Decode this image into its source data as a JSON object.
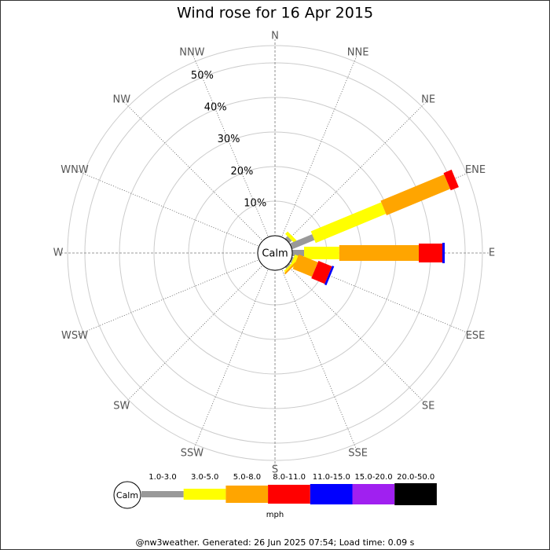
{
  "chart_data": {
    "type": "windrose",
    "title": "Wind rose for 16 Apr 2015",
    "directions": [
      "N",
      "NNE",
      "NE",
      "ENE",
      "E",
      "ESE",
      "SE",
      "SSE",
      "S",
      "SSW",
      "SW",
      "WSW",
      "W",
      "WNW",
      "NW",
      "NNW"
    ],
    "series": [
      {
        "name": "1.0-3.0",
        "color": "#999999",
        "values": [
          0,
          0,
          1.0,
          7.0,
          3.4,
          0.5,
          0.5,
          0,
          0,
          0,
          0,
          0,
          0,
          0,
          0,
          0
        ]
      },
      {
        "name": "3.0-5.0",
        "color": "#ffff00",
        "values": [
          0,
          0,
          1.0,
          22.0,
          10.2,
          1.0,
          0.5,
          0,
          0,
          0,
          0,
          0,
          0,
          0,
          0,
          0
        ]
      },
      {
        "name": "5.0-8.0",
        "color": "#ffa500",
        "values": [
          0,
          0,
          0,
          19.9,
          23.0,
          6.0,
          0.5,
          0,
          0,
          0,
          0,
          0,
          0,
          0,
          0,
          0
        ]
      },
      {
        "name": "8.0-11.0",
        "color": "#ff0000",
        "values": [
          0,
          0,
          0,
          2.5,
          6.8,
          4.2,
          0,
          0,
          0,
          0,
          0,
          0,
          0,
          0,
          0,
          0
        ]
      },
      {
        "name": "11.0-15.0",
        "color": "#0000ff",
        "values": [
          0,
          0,
          0,
          0,
          0.7,
          0.6,
          0,
          0,
          0,
          0,
          0,
          0,
          0,
          0,
          0,
          0
        ]
      },
      {
        "name": "15.0-20.0",
        "color": "#a020f0",
        "values": [
          0,
          0,
          0,
          0,
          0,
          0,
          0,
          0,
          0,
          0,
          0,
          0,
          0,
          0,
          0,
          0
        ]
      },
      {
        "name": "20.0-50.0",
        "color": "#000000",
        "values": [
          0,
          0,
          0,
          0,
          0,
          0,
          0,
          0,
          0,
          0,
          0,
          0,
          0,
          0,
          0,
          0
        ]
      }
    ],
    "rlim": [
      0,
      55
    ],
    "rticks": [
      {
        "value": 10,
        "label": "10%"
      },
      {
        "value": 20,
        "label": "20%"
      },
      {
        "value": 30,
        "label": "30%"
      },
      {
        "value": 40,
        "label": "40%"
      },
      {
        "value": 50,
        "label": "50%"
      }
    ],
    "calm_label": "Calm",
    "unit": "mph",
    "footer": "@nw3weather. Generated: 26 Jun 2025 07:54; Load time: 0.09 s"
  }
}
